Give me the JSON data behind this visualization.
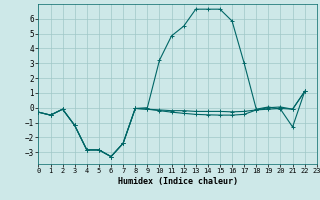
{
  "xlabel": "Humidex (Indice chaleur)",
  "bg_color": "#cde8e8",
  "grid_color": "#a0c8c8",
  "line_color": "#006666",
  "xlim": [
    0,
    23
  ],
  "ylim": [
    -3.8,
    7.0
  ],
  "yticks": [
    -3,
    -2,
    -1,
    0,
    1,
    2,
    3,
    4,
    5,
    6
  ],
  "xticks": [
    0,
    1,
    2,
    3,
    4,
    5,
    6,
    7,
    8,
    9,
    10,
    11,
    12,
    13,
    14,
    15,
    16,
    17,
    18,
    19,
    20,
    21,
    22,
    23
  ],
  "curve1_x": [
    0,
    1,
    2,
    3,
    4,
    5,
    6,
    7,
    8,
    9,
    10,
    11,
    12,
    13,
    14,
    15,
    16,
    17,
    18,
    19,
    20,
    21,
    22
  ],
  "curve1_y": [
    -0.3,
    -0.5,
    -0.1,
    -1.2,
    -2.85,
    -2.85,
    -3.3,
    -2.4,
    -0.05,
    0.0,
    3.2,
    4.85,
    5.5,
    6.65,
    6.65,
    6.65,
    5.85,
    3.0,
    -0.1,
    0.05,
    -0.1,
    -1.3,
    1.1
  ],
  "curve2_x": [
    0,
    1,
    2,
    3,
    4,
    5,
    6,
    7,
    8,
    9,
    10,
    11,
    12,
    13,
    14,
    15,
    16,
    17,
    18,
    19,
    20,
    21,
    22
  ],
  "curve2_y": [
    -0.3,
    -0.5,
    -0.1,
    -1.2,
    -2.85,
    -2.85,
    -3.3,
    -2.4,
    -0.05,
    -0.1,
    -0.15,
    -0.2,
    -0.2,
    -0.25,
    -0.25,
    -0.25,
    -0.28,
    -0.25,
    -0.15,
    -0.1,
    -0.05,
    -0.1,
    1.1
  ],
  "curve3_x": [
    0,
    1,
    2,
    3,
    4,
    5,
    6,
    7,
    8,
    9,
    10,
    11,
    12,
    13,
    14,
    15,
    16,
    17,
    18,
    19,
    20,
    21,
    22
  ],
  "curve3_y": [
    -0.3,
    -0.5,
    -0.1,
    -1.2,
    -2.85,
    -2.85,
    -3.3,
    -2.4,
    -0.05,
    -0.1,
    -0.2,
    -0.3,
    -0.38,
    -0.45,
    -0.48,
    -0.5,
    -0.5,
    -0.45,
    -0.15,
    0.0,
    0.05,
    -0.1,
    1.1
  ]
}
